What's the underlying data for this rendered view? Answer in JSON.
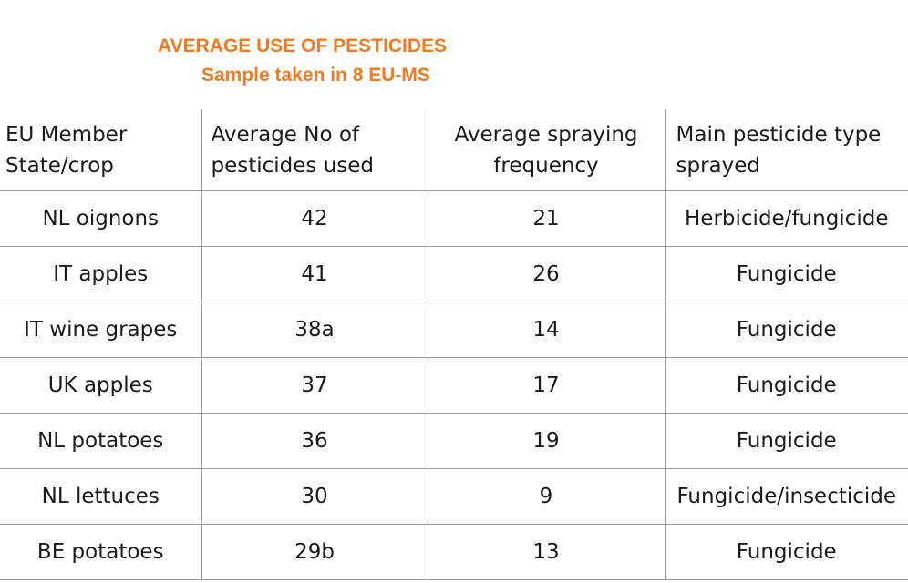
{
  "title": "AVERAGE USE OF PESTICIDES",
  "subtitle": "Sample taken in 8 EU-MS",
  "table": {
    "headers": {
      "col1": [
        "EU Member",
        "State/crop"
      ],
      "col2": [
        "Average No of",
        "pesticides used"
      ],
      "col3": [
        "Average spraying",
        "frequency"
      ],
      "col4": [
        "Main pesticide type",
        "sprayed"
      ]
    },
    "rows": [
      {
        "crop": "NL oignons",
        "pesticides": "42",
        "frequency": "21",
        "type": "Herbicide/fungicide"
      },
      {
        "crop": "IT apples",
        "pesticides": "41",
        "frequency": "26",
        "type": "Fungicide"
      },
      {
        "crop": "IT wine grapes",
        "pesticides": "38a",
        "frequency": "14",
        "type": "Fungicide"
      },
      {
        "crop": "UK apples",
        "pesticides": "37",
        "frequency": "17",
        "type": "Fungicide"
      },
      {
        "crop": "NL potatoes",
        "pesticides": "36",
        "frequency": "19",
        "type": "Fungicide"
      },
      {
        "crop": "NL lettuces",
        "pesticides": "30",
        "frequency": "9",
        "type": "Fungicide/insecticide"
      },
      {
        "crop": "BE potatoes",
        "pesticides": "29b",
        "frequency": "13",
        "type": "Fungicide"
      }
    ]
  },
  "colors": {
    "title": "#f47a20",
    "rule": "#9a9a9a",
    "text": "#1a1a1a"
  }
}
